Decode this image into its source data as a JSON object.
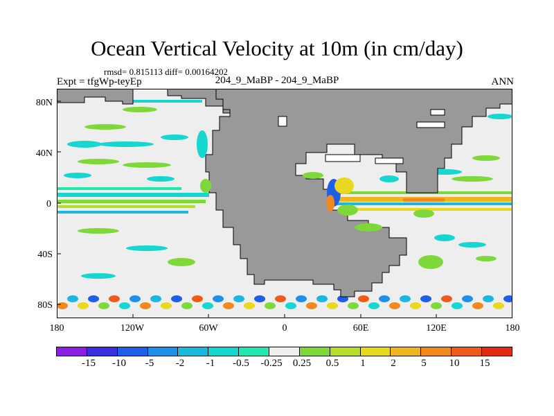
{
  "title": "Ocean Vertical Velocity at 10m (in cm/day)",
  "stats": "rmsd= 0.815113 diff= 0.00164202",
  "expt": "Expt = tfgWp-teyEp",
  "case": "204_9_MaBP - 204_9_MaBP",
  "season": "ANN",
  "y_ticks": [
    "80N",
    "40N",
    "0",
    "40S",
    "80S"
  ],
  "x_ticks": [
    "180",
    "120W",
    "60W",
    "0",
    "60E",
    "120E",
    "180"
  ],
  "colorbar": {
    "labels": [
      "-15",
      "-10",
      "-5",
      "-2",
      "-1",
      "-0.5",
      "-0.25",
      "0.25",
      "0.5",
      "1",
      "2",
      "5",
      "10",
      "15"
    ],
    "colors": [
      "#8a1fe0",
      "#3a2fe0",
      "#1e5ee8",
      "#1e90e8",
      "#18b8e0",
      "#16d6d0",
      "#20e8b0",
      "#eeeeee",
      "#7ed83a",
      "#b8dc2a",
      "#e8d81e",
      "#f0b41e",
      "#f08a1e",
      "#f05a1a",
      "#e42a10"
    ]
  },
  "colors": {
    "land": "#999999",
    "zero": "#eeeeee"
  }
}
